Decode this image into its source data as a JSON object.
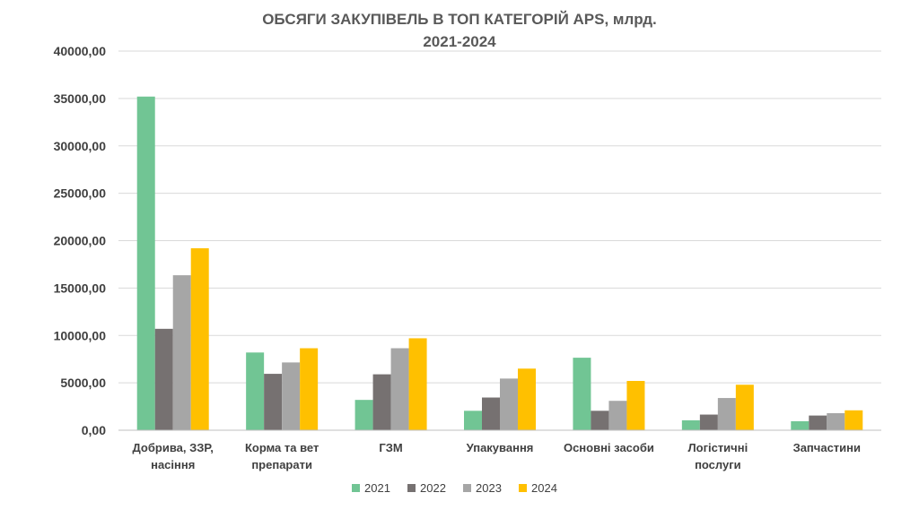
{
  "chart_data": {
    "type": "bar",
    "title": [
      "ОБСЯГИ ЗАКУПІВЕЛЬ В ТОП КАТЕГОРІЙ APS, млрд.",
      "2021-2024"
    ],
    "categories": [
      [
        "Добрива, ЗЗР,",
        "насіння"
      ],
      [
        "Корма та вет",
        "препарати"
      ],
      [
        "ГЗМ"
      ],
      [
        "Упакування"
      ],
      [
        "Основні засоби"
      ],
      [
        "Логістичні",
        "послуги"
      ],
      [
        "Запчастини"
      ]
    ],
    "series": [
      {
        "name": "2021",
        "color": "#71c594",
        "values": [
          35200,
          8200,
          3200,
          2050,
          7650,
          1050,
          950
        ]
      },
      {
        "name": "2022",
        "color": "#767171",
        "values": [
          10700,
          5950,
          5900,
          3450,
          2050,
          1650,
          1550
        ]
      },
      {
        "name": "2023",
        "color": "#a6a6a6",
        "values": [
          16350,
          7150,
          8650,
          5450,
          3100,
          3400,
          1800
        ]
      },
      {
        "name": "2024",
        "color": "#ffc000",
        "values": [
          19200,
          8650,
          9700,
          6500,
          5200,
          4800,
          2100
        ]
      }
    ],
    "y_ticks": [
      "0,00",
      "5000,00",
      "10000,00",
      "15000,00",
      "20000,00",
      "25000,00",
      "30000,00",
      "35000,00",
      "40000,00"
    ],
    "ylim": [
      0,
      40000
    ],
    "grid": true,
    "legend_position": "bottom"
  }
}
